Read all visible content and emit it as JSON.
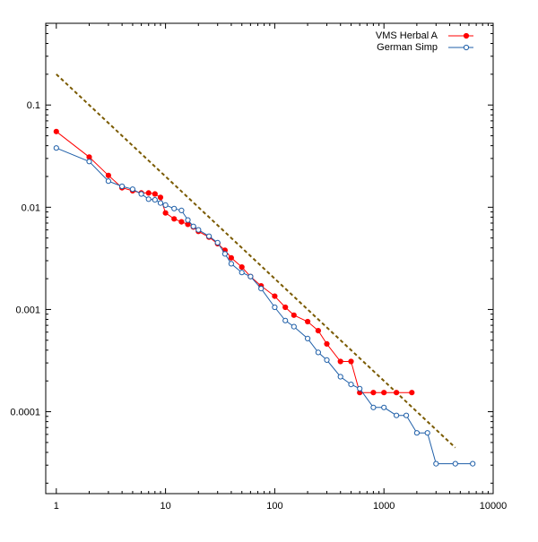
{
  "chart_data": {
    "type": "scatter",
    "title": "",
    "xlabel": "",
    "ylabel": "",
    "xscale": "log",
    "yscale": "log",
    "xlim": [
      0.8,
      10000
    ],
    "ylim": [
      1.58e-05,
      0.63
    ],
    "grid": false,
    "legend_position": "top-right",
    "x_ticks": [
      {
        "value": 1,
        "label": "1"
      },
      {
        "value": 10,
        "label": "10"
      },
      {
        "value": 100,
        "label": "100"
      },
      {
        "value": 1000,
        "label": "1000"
      },
      {
        "value": 10000,
        "label": "10000"
      }
    ],
    "y_ticks": [
      {
        "value": 0.1,
        "label": "0.1"
      },
      {
        "value": 0.01,
        "label": "0.01"
      },
      {
        "value": 0.001,
        "label": "0.001"
      },
      {
        "value": 0.0001,
        "label": "0.0001"
      }
    ],
    "series": [
      {
        "name": "VMS Herbal A",
        "color": "#ff0000",
        "marker": "filled-circle",
        "line": true,
        "points": [
          [
            1,
            0.055
          ],
          [
            2,
            0.031
          ],
          [
            3,
            0.0205
          ],
          [
            4,
            0.0155
          ],
          [
            5,
            0.0145
          ],
          [
            6,
            0.0138
          ],
          [
            7,
            0.0138
          ],
          [
            8,
            0.0135
          ],
          [
            9,
            0.0125
          ],
          [
            10,
            0.0088
          ],
          [
            12,
            0.0077
          ],
          [
            14,
            0.0072
          ],
          [
            16,
            0.0068
          ],
          [
            18,
            0.0064
          ],
          [
            20,
            0.0058
          ],
          [
            25,
            0.0051
          ],
          [
            30,
            0.0044
          ],
          [
            35,
            0.0038
          ],
          [
            40,
            0.0032
          ],
          [
            50,
            0.0026
          ],
          [
            60,
            0.0021
          ],
          [
            75,
            0.0017
          ],
          [
            100,
            0.00135
          ],
          [
            125,
            0.00105
          ],
          [
            150,
            0.00088
          ],
          [
            200,
            0.00076
          ],
          [
            250,
            0.00062
          ],
          [
            300,
            0.00046
          ],
          [
            400,
            0.00031
          ],
          [
            500,
            0.00031
          ],
          [
            600,
            0.000154
          ],
          [
            800,
            0.000154
          ],
          [
            1000,
            0.000154
          ],
          [
            1300,
            0.000154
          ],
          [
            1800,
            0.000154
          ]
        ]
      },
      {
        "name": "German Simp",
        "color": "#1f5fa8",
        "marker": "open-circle",
        "line": true,
        "points": [
          [
            1,
            0.038
          ],
          [
            2,
            0.028
          ],
          [
            3,
            0.018
          ],
          [
            4,
            0.016
          ],
          [
            5,
            0.015
          ],
          [
            6,
            0.0135
          ],
          [
            7,
            0.012
          ],
          [
            8,
            0.0118
          ],
          [
            9,
            0.011
          ],
          [
            10,
            0.0105
          ],
          [
            12,
            0.0097
          ],
          [
            14,
            0.0093
          ],
          [
            16,
            0.0075
          ],
          [
            18,
            0.0065
          ],
          [
            20,
            0.006
          ],
          [
            25,
            0.0052
          ],
          [
            30,
            0.0045
          ],
          [
            35,
            0.0035
          ],
          [
            40,
            0.0028
          ],
          [
            50,
            0.0023
          ],
          [
            60,
            0.0021
          ],
          [
            75,
            0.0016
          ],
          [
            100,
            0.00105
          ],
          [
            125,
            0.00078
          ],
          [
            150,
            0.00068
          ],
          [
            200,
            0.00052
          ],
          [
            250,
            0.00038
          ],
          [
            300,
            0.00032
          ],
          [
            400,
            0.00022
          ],
          [
            500,
            0.000185
          ],
          [
            600,
            0.000168
          ],
          [
            800,
            0.00011
          ],
          [
            1000,
            0.00011
          ],
          [
            1300,
            9.2e-05
          ],
          [
            1600,
            9.2e-05
          ],
          [
            2000,
            6.2e-05
          ],
          [
            2500,
            6.2e-05
          ],
          [
            3000,
            3.1e-05
          ],
          [
            4500,
            3.1e-05
          ],
          [
            6500,
            3.1e-05
          ]
        ]
      }
    ],
    "reference_line": {
      "style": "dashed",
      "color": "#7a5a00",
      "points": [
        [
          1,
          0.2
        ],
        [
          4500,
          4.45e-05
        ]
      ]
    }
  }
}
